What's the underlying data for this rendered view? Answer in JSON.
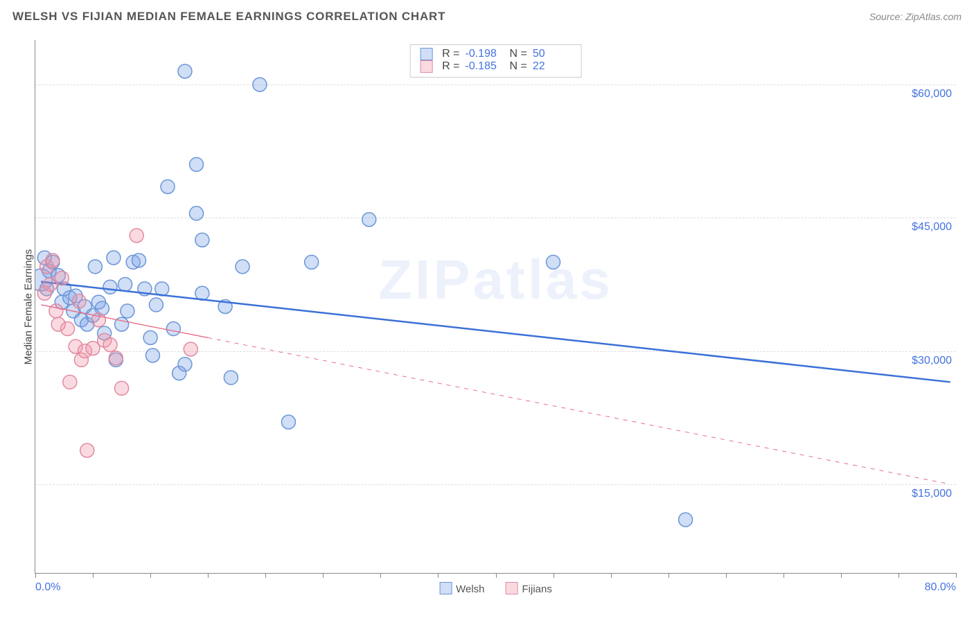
{
  "title": "WELSH VS FIJIAN MEDIAN FEMALE EARNINGS CORRELATION CHART",
  "source_label": "Source: ZipAtlas.com",
  "watermark": "ZIPatlas",
  "chart": {
    "type": "scatter",
    "ylabel": "Median Female Earnings",
    "xlim": [
      0,
      80
    ],
    "ylim": [
      5000,
      65000
    ],
    "x_bounds": {
      "min_label": "0.0%",
      "max_label": "80.0%"
    },
    "x_ticks": [
      0,
      5,
      10,
      15,
      20,
      25,
      30,
      35,
      40,
      45,
      50,
      55,
      60,
      65,
      70,
      75,
      80
    ],
    "y_gridlines": [
      {
        "value": 15000,
        "label": "$15,000"
      },
      {
        "value": 30000,
        "label": "$30,000"
      },
      {
        "value": 45000,
        "label": "$45,000"
      },
      {
        "value": 60000,
        "label": "$60,000"
      }
    ],
    "background_color": "#ffffff",
    "grid_color": "#dddddd",
    "axis_color": "#888888",
    "tick_label_color": "#4472e0",
    "series": [
      {
        "name": "Welsh",
        "fill": "rgba(120,160,230,0.35)",
        "stroke": "#6a95d8",
        "line_color": "#3b70d8",
        "marker_r": 10,
        "R": "-0.198",
        "N": "50",
        "trend": {
          "x1": 0.5,
          "y1": 37800,
          "x2": 79.5,
          "y2": 26500,
          "solid": true,
          "width": 2.5
        },
        "points": [
          {
            "x": 0.5,
            "y": 38000,
            "r": 16
          },
          {
            "x": 0.8,
            "y": 40500
          },
          {
            "x": 1,
            "y": 37000
          },
          {
            "x": 1.2,
            "y": 39000
          },
          {
            "x": 1.5,
            "y": 40000
          },
          {
            "x": 2,
            "y": 38500
          },
          {
            "x": 2.3,
            "y": 35500
          },
          {
            "x": 2.5,
            "y": 37000
          },
          {
            "x": 3,
            "y": 36000
          },
          {
            "x": 3.3,
            "y": 34500
          },
          {
            "x": 3.5,
            "y": 36200
          },
          {
            "x": 4,
            "y": 33500
          },
          {
            "x": 4.3,
            "y": 35000
          },
          {
            "x": 4.5,
            "y": 33000
          },
          {
            "x": 5,
            "y": 34000
          },
          {
            "x": 5.2,
            "y": 39500
          },
          {
            "x": 5.5,
            "y": 35500
          },
          {
            "x": 5.8,
            "y": 34800
          },
          {
            "x": 6,
            "y": 32000
          },
          {
            "x": 6.5,
            "y": 37200
          },
          {
            "x": 6.8,
            "y": 40500
          },
          {
            "x": 7,
            "y": 29000
          },
          {
            "x": 7.5,
            "y": 33000
          },
          {
            "x": 7.8,
            "y": 37500
          },
          {
            "x": 8,
            "y": 34500
          },
          {
            "x": 8.5,
            "y": 40000
          },
          {
            "x": 9,
            "y": 40200
          },
          {
            "x": 9.5,
            "y": 37000
          },
          {
            "x": 10,
            "y": 31500
          },
          {
            "x": 10.2,
            "y": 29500
          },
          {
            "x": 10.5,
            "y": 35200
          },
          {
            "x": 11,
            "y": 37000
          },
          {
            "x": 11.5,
            "y": 48500
          },
          {
            "x": 12,
            "y": 32500
          },
          {
            "x": 12.5,
            "y": 27500
          },
          {
            "x": 13,
            "y": 28500
          },
          {
            "x": 13,
            "y": 61500
          },
          {
            "x": 14,
            "y": 45500
          },
          {
            "x": 14,
            "y": 51000
          },
          {
            "x": 14.5,
            "y": 36500
          },
          {
            "x": 14.5,
            "y": 42500
          },
          {
            "x": 16.5,
            "y": 35000
          },
          {
            "x": 17,
            "y": 27000
          },
          {
            "x": 18,
            "y": 39500
          },
          {
            "x": 19.5,
            "y": 60000
          },
          {
            "x": 22,
            "y": 22000
          },
          {
            "x": 24,
            "y": 40000
          },
          {
            "x": 29,
            "y": 44800
          },
          {
            "x": 45,
            "y": 40000
          },
          {
            "x": 56.5,
            "y": 11000
          }
        ]
      },
      {
        "name": "Fijians",
        "fill": "rgba(240,150,170,0.35)",
        "stroke": "#e08aa0",
        "line_color": "#e86b85",
        "marker_r": 10,
        "R": "-0.185",
        "N": "22",
        "trend": {
          "x1": 0.5,
          "y1": 35200,
          "x2": 79.5,
          "y2": 15000,
          "solid_until": 15,
          "width": 1.4
        },
        "points": [
          {
            "x": 0.8,
            "y": 36500
          },
          {
            "x": 1,
            "y": 39500
          },
          {
            "x": 1.3,
            "y": 37500
          },
          {
            "x": 1.5,
            "y": 40200
          },
          {
            "x": 1.8,
            "y": 34500
          },
          {
            "x": 2,
            "y": 33000
          },
          {
            "x": 2.3,
            "y": 38200
          },
          {
            "x": 2.8,
            "y": 32500
          },
          {
            "x": 3,
            "y": 26500
          },
          {
            "x": 3.5,
            "y": 30500
          },
          {
            "x": 3.8,
            "y": 35600
          },
          {
            "x": 4,
            "y": 29000
          },
          {
            "x": 4.3,
            "y": 30000
          },
          {
            "x": 4.5,
            "y": 18800
          },
          {
            "x": 5,
            "y": 30300
          },
          {
            "x": 5.5,
            "y": 33500
          },
          {
            "x": 6,
            "y": 31200
          },
          {
            "x": 6.5,
            "y": 30700
          },
          {
            "x": 7,
            "y": 29200
          },
          {
            "x": 7.5,
            "y": 25800
          },
          {
            "x": 8.8,
            "y": 43000
          },
          {
            "x": 13.5,
            "y": 30200
          }
        ]
      }
    ]
  },
  "footer_legend": [
    {
      "label": "Welsh",
      "fill": "rgba(120,160,230,0.35)",
      "border": "#6a95d8"
    },
    {
      "label": "Fijians",
      "fill": "rgba(240,150,170,0.35)",
      "border": "#e08aa0"
    }
  ]
}
